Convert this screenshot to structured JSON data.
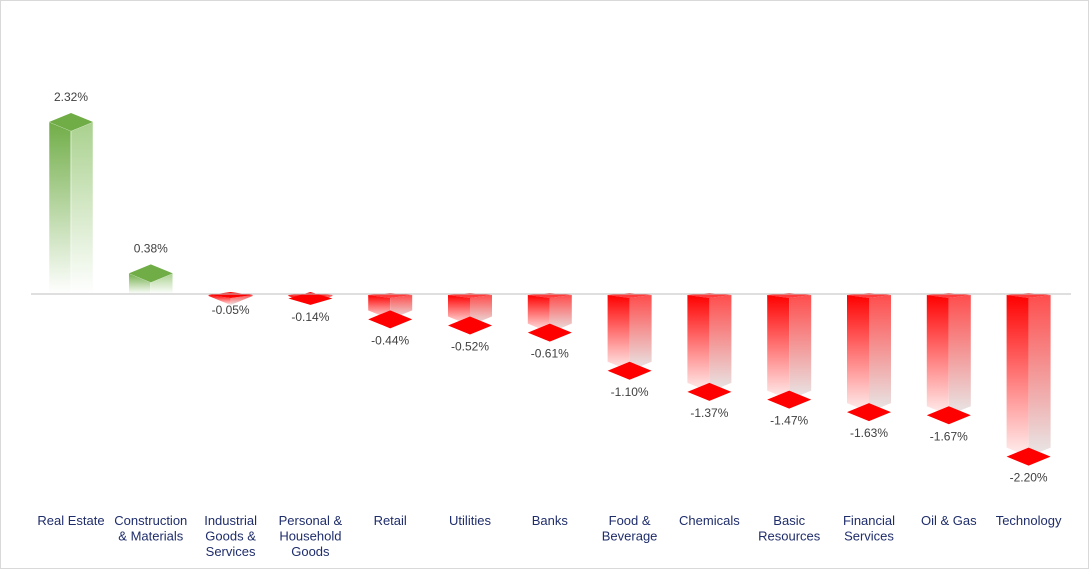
{
  "chart_data": {
    "type": "bar",
    "title": "",
    "xlabel": "",
    "ylabel": "",
    "ylim": [
      -2.5,
      2.5
    ],
    "grid": false,
    "legend": "none",
    "categories": [
      [
        "Real Estate"
      ],
      [
        "Construction",
        "& Materials"
      ],
      [
        "Industrial",
        "Goods &",
        "Services"
      ],
      [
        "Personal &",
        "Household",
        "Goods"
      ],
      [
        "Retail"
      ],
      [
        "Utilities"
      ],
      [
        "Banks"
      ],
      [
        "Food &",
        "Beverage"
      ],
      [
        "Chemicals"
      ],
      [
        "Basic",
        "Resources"
      ],
      [
        "Financial",
        "Services"
      ],
      [
        "Oil & Gas"
      ],
      [
        "Technology"
      ]
    ],
    "values": [
      2.32,
      0.38,
      -0.05,
      -0.14,
      -0.44,
      -0.52,
      -0.61,
      -1.1,
      -1.37,
      -1.47,
      -1.63,
      -1.67,
      -2.2
    ],
    "value_labels": [
      "2.32%",
      "0.38%",
      "-0.05%",
      "-0.14%",
      "-0.44%",
      "-0.52%",
      "-0.61%",
      "-1.10%",
      "-1.37%",
      "-1.47%",
      "-1.63%",
      "-1.67%",
      "-2.20%"
    ],
    "colors": {
      "positive": "#70ad47",
      "positive_light": "#e2efd9",
      "negative": "#ff0000",
      "negative_light": "#f2dcdb",
      "axis": "#bfbfbf"
    }
  }
}
